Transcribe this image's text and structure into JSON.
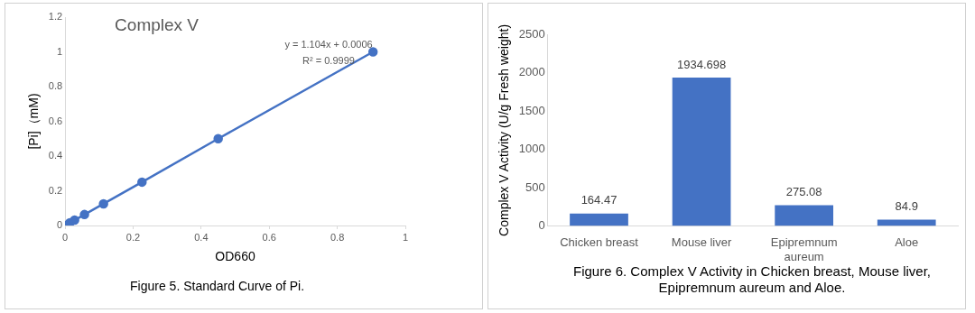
{
  "chart_data": [
    {
      "type": "line",
      "title": "Complex V",
      "xlabel": "OD660",
      "ylabel": "[Pi]（mM)",
      "marker": "circle",
      "grid": false,
      "legend": false,
      "x": [
        0,
        0.014,
        0.028,
        0.057,
        0.113,
        0.226,
        0.45,
        0.905
      ],
      "series": [
        {
          "color": "#4472c4",
          "values": [
            0,
            0.016,
            0.031,
            0.063,
            0.125,
            0.25,
            0.5,
            1
          ]
        }
      ],
      "xlim": [
        0,
        1
      ],
      "xticks": [
        0,
        0.2,
        0.4,
        0.6,
        0.8,
        1
      ],
      "ylim": [
        0,
        1.2
      ],
      "yticks": [
        0,
        0.2,
        0.4,
        0.6,
        0.8,
        1,
        1.2
      ],
      "annotations": [
        "y = 1.104x + 0.0006",
        "R² = 0.9999",
        "Figure 5. Standard Curve of Pi."
      ]
    },
    {
      "type": "bar",
      "ylabel": "Complex V Activity (U/g Fresh weight)",
      "grid": false,
      "legend": false,
      "data_labels": true,
      "categories": [
        "Chicken breast",
        "Mouse liver",
        "Epipremnum aureum",
        "Aloe"
      ],
      "series": [
        {
          "color": "#4472c4",
          "values": [
            164.47,
            1934.698,
            275.08,
            84.9
          ]
        }
      ],
      "ylim": [
        0,
        2500
      ],
      "yticks": [
        0,
        500,
        1000,
        1500,
        2000,
        2500
      ],
      "annotations": [
        "Figure 6. Complex V Activity in Chicken breast, Mouse liver,",
        "Epipremnum aureum and Aloe."
      ]
    }
  ]
}
